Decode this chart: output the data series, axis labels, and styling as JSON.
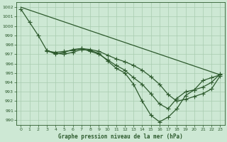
{
  "title": "Graphe pression niveau de la mer (hPa)",
  "background_color": "#cde8d4",
  "grid_color": "#a8ccb0",
  "line_color": "#2d5a2d",
  "xlim": [
    -0.5,
    23.5
  ],
  "ylim": [
    989.5,
    1002.5
  ],
  "yticks": [
    990,
    991,
    992,
    993,
    994,
    995,
    996,
    997,
    998,
    999,
    1000,
    1001,
    1002
  ],
  "xticks": [
    0,
    1,
    2,
    3,
    4,
    5,
    6,
    7,
    8,
    9,
    10,
    11,
    12,
    13,
    14,
    15,
    16,
    17,
    18,
    19,
    20,
    21,
    22,
    23
  ],
  "series": [
    {
      "x": [
        0,
        23
      ],
      "y": [
        1002.0,
        994.8
      ],
      "marker": null,
      "linewidth": 0.9
    },
    {
      "x": [
        0,
        1,
        2,
        3,
        4,
        5,
        6,
        7,
        8,
        9,
        10,
        11,
        12,
        13,
        14,
        15,
        16,
        17,
        18,
        19,
        20,
        21,
        22,
        23
      ],
      "y": [
        1001.8,
        1000.4,
        999.0,
        997.4,
        997.1,
        997.0,
        997.2,
        997.5,
        997.4,
        997.1,
        996.3,
        995.5,
        995.0,
        993.8,
        992.0,
        990.5,
        989.8,
        990.3,
        991.2,
        992.6,
        993.2,
        994.2,
        994.5,
        994.8
      ],
      "marker": "P",
      "markersize": 3.0,
      "linewidth": 0.9
    },
    {
      "x": [
        3,
        4,
        5,
        6,
        7,
        8,
        9,
        10,
        11,
        12,
        13,
        14,
        15,
        16,
        17,
        18,
        19,
        20,
        21,
        22,
        23
      ],
      "y": [
        997.4,
        997.0,
        997.2,
        997.5,
        997.6,
        997.3,
        997.0,
        996.4,
        995.8,
        995.3,
        994.5,
        993.8,
        992.8,
        991.7,
        991.2,
        992.3,
        993.0,
        993.2,
        993.5,
        994.0,
        994.9
      ],
      "marker": "P",
      "markersize": 3.0,
      "linewidth": 0.9
    },
    {
      "x": [
        3,
        4,
        5,
        6,
        7,
        8,
        9,
        10,
        11,
        12,
        13,
        14,
        15,
        16,
        17,
        18,
        19,
        20,
        21,
        22,
        23
      ],
      "y": [
        997.3,
        997.2,
        997.3,
        997.4,
        997.6,
        997.5,
        997.3,
        996.9,
        996.5,
        996.2,
        995.8,
        995.3,
        994.6,
        993.8,
        992.7,
        992.0,
        992.2,
        992.5,
        992.8,
        993.3,
        994.7
      ],
      "marker": "P",
      "markersize": 3.0,
      "linewidth": 0.9
    }
  ]
}
